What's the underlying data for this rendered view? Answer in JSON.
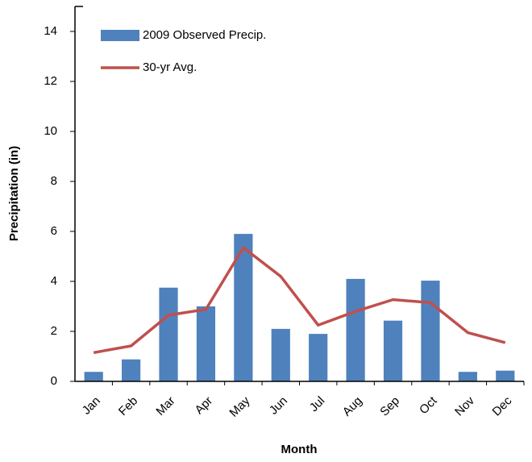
{
  "chart_data": {
    "type": "bar",
    "categories": [
      "Jan",
      "Feb",
      "Mar",
      "Apr",
      "May",
      "Jun",
      "Jul",
      "Aug",
      "Sep",
      "Oct",
      "Nov",
      "Dec"
    ],
    "series": [
      {
        "name": "2009 Observed Precip.",
        "type": "bar",
        "color": "#4f81bd",
        "values": [
          0.38,
          0.88,
          3.75,
          3.0,
          5.9,
          2.1,
          1.9,
          4.1,
          2.43,
          4.03,
          0.38,
          0.43
        ]
      },
      {
        "name": "30-yr Avg.",
        "type": "line",
        "color": "#c0504d",
        "values": [
          1.15,
          1.42,
          2.65,
          2.88,
          5.35,
          4.2,
          2.25,
          2.8,
          3.27,
          3.15,
          1.95,
          1.55
        ]
      }
    ],
    "x_label": "Month",
    "y_label": "Precipitation (in)",
    "ylim": [
      0,
      15
    ],
    "yticks": [
      0,
      2,
      4,
      6,
      8,
      10,
      12,
      14
    ],
    "grid": false,
    "legend": "top-left"
  }
}
